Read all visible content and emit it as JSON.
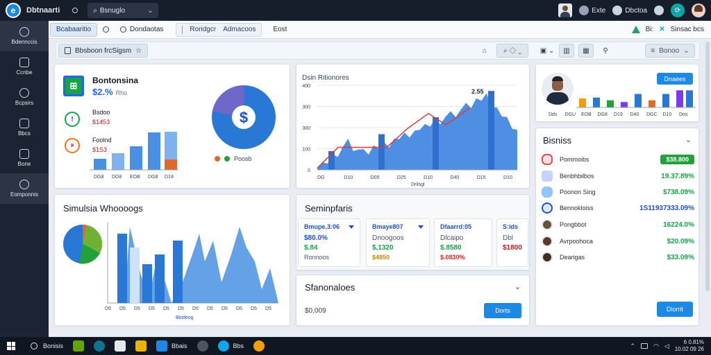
{
  "topbar": {
    "app_name": "Dbtnaarti",
    "search_label": "Bsnuglo",
    "item1": "Exte",
    "item2": "Dbctoa",
    "colors": {
      "bg": "#161e2c",
      "accent": "#1e88e5"
    }
  },
  "sidebar": {
    "items": [
      {
        "label": "Bdennccis",
        "icon": "globe-icon"
      },
      {
        "label": "Ccnbe",
        "icon": "mail-icon"
      },
      {
        "label": "Bcpsirs",
        "icon": "chat-icon"
      },
      {
        "label": "Bbcs",
        "icon": "doc-icon"
      },
      {
        "label": "Bone",
        "icon": "lock-icon"
      },
      {
        "label": "Eomponnis",
        "icon": "settings-icon"
      }
    ]
  },
  "tabs": {
    "first": "Bcabaaritio",
    "second": "Dondaotas",
    "third": "Roridgcr",
    "fourth": "Admacoos",
    "fifth": "Eost",
    "right1": "Bi:",
    "right2": "Sinsac bcs"
  },
  "toolbar": {
    "crumb": "Bbsboon frcSigsm",
    "view_label": "Bonoo"
  },
  "card_overview": {
    "title": "Bontonsina",
    "value": "$2.%",
    "value_sub": "Rho",
    "row1_name": "Bsdoo",
    "row1_value": "$1453",
    "row2_name": "Foolnd",
    "row2_value": "$1S3",
    "legend": "Poosb",
    "pie_icon": "$"
  },
  "chart_area": {
    "title": "Dsin Ritionores",
    "peak_label": "2.55",
    "y_ticks": [
      "400",
      "300",
      "300",
      "100",
      "0"
    ],
    "x_ticks": [
      "DG",
      "D10",
      "D05",
      "D25",
      "D10",
      "D40",
      "D15",
      "D10"
    ],
    "x_label": "Drilsgl"
  },
  "chart_data": [
    {
      "type": "area",
      "title": "",
      "xlabel": "Drilsgl",
      "ylabel": "",
      "ylim": [
        0,
        450
      ],
      "series": [
        {
          "values": [
            10,
            60,
            140,
            80,
            120,
            150,
            180,
            230,
            260,
            300,
            340,
            390,
            280,
            200
          ]
        }
      ]
    },
    {
      "type": "bar",
      "title": "",
      "categories": [
        "DGG",
        "DGB",
        "EOB",
        "DG8",
        "D19",
        "D40",
        "DGC",
        "D10"
      ],
      "values": [
        50,
        55,
        40,
        30,
        75,
        40,
        75,
        95
      ]
    },
    {
      "type": "pie",
      "title": "",
      "values": [
        45,
        35,
        20
      ]
    }
  ],
  "card_people": {
    "button": "Dnaees",
    "x_ticks": [
      "Dds",
      "DGU",
      "EOB",
      "DG8",
      "D19",
      "D40",
      "DGC",
      "D10",
      "Dos"
    ]
  },
  "card_simulation": {
    "title": "Simulsia Whoooogs",
    "x_ticks": [
      "D5",
      "D5",
      "D5",
      "D5",
      "D5",
      "D5",
      "D5",
      "D5",
      "D5",
      "D5",
      "D5",
      "D5"
    ],
    "x_label": "Bindeog"
  },
  "card_stats": {
    "title": "Seminpfaris",
    "boxes": [
      {
        "h": "Bmupe,3:06",
        "a": "$80.0%",
        "b": "$.84",
        "c": "Ronnoos",
        "a_color": "#1d4ed8",
        "b_color": "#16a34a",
        "c_color": "#475569"
      },
      {
        "h": "Bmaye807",
        "a": "Dnoogoos",
        "b": "$,1320",
        "c": "$4850",
        "a_color": "#475569",
        "b_color": "#16a34a",
        "c_color": "#ca8a04"
      },
      {
        "h": "Dfaarrd:05",
        "a": "Dlcaipo",
        "b": "$.8580",
        "c": "$.0830%",
        "a_color": "#475569",
        "b_color": "#16a34a",
        "c_color": "#dc2626"
      },
      {
        "h": "S:ids",
        "a": "Dbl",
        "b": "$1800",
        "c": "",
        "a_color": "#475569",
        "b_color": "#b91c1c",
        "c_color": "#475569"
      }
    ]
  },
  "card_submit": {
    "title": "Sfanonaloes",
    "amount": "$0,009",
    "button": "Dorts"
  },
  "card_list": {
    "title": "Bisniss",
    "pill": "$38.800",
    "rows": [
      {
        "label": "Pommoibs",
        "value": "$38.800",
        "color": "#ef4444"
      },
      {
        "label": "Benbhbilbos",
        "value": "19.37.89%",
        "color": "#16a34a"
      },
      {
        "label": "Poonon Sing",
        "value": "$738.09%",
        "color": "#16a34a"
      },
      {
        "label": "Bennokloiss",
        "value": "1S11937333.09%",
        "color": "#1d4ed8"
      },
      {
        "label": "Pongbbot",
        "value": "16224.0%",
        "color": "#16a34a"
      },
      {
        "label": "Avrpoohoca",
        "value": "$20.09%",
        "color": "#16a34a"
      },
      {
        "label": "Dearigas",
        "value": "$33.09%",
        "color": "#16a34a"
      }
    ],
    "button": "Diorrit"
  },
  "taskbar": {
    "search": "Bonisis",
    "app1": "Bbais",
    "app2": "Bbs",
    "clock_time": "6 0.81%",
    "clock_date": "10.02 09 26"
  }
}
